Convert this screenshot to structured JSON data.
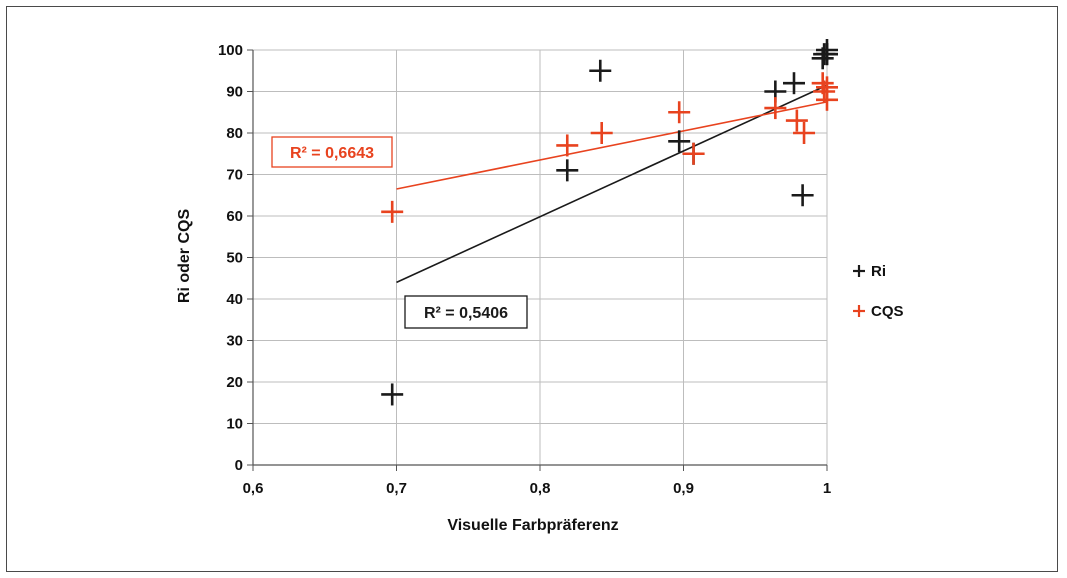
{
  "chart_data": {
    "type": "scatter",
    "title": "",
    "xlabel": "Visuelle Farbpräferenz",
    "ylabel": "Ri oder CQS",
    "xlim": [
      0.6,
      1.0
    ],
    "ylim": [
      0,
      100
    ],
    "x_ticks": [
      "0,6",
      "0,7",
      "0,8",
      "0,9",
      "1"
    ],
    "x_tick_values": [
      0.6,
      0.7,
      0.8,
      0.9,
      1.0
    ],
    "y_ticks": [
      "0",
      "10",
      "20",
      "30",
      "40",
      "50",
      "60",
      "70",
      "80",
      "90",
      "100"
    ],
    "y_tick_values": [
      0,
      10,
      20,
      30,
      40,
      50,
      60,
      70,
      80,
      90,
      100
    ],
    "grid": true,
    "legend_position": "right",
    "series": [
      {
        "name": "Ri",
        "color": "#1a1a1a",
        "marker": "plus",
        "points": [
          [
            0.697,
            17
          ],
          [
            0.819,
            71
          ],
          [
            0.842,
            95
          ],
          [
            0.897,
            78
          ],
          [
            0.907,
            75
          ],
          [
            0.964,
            90
          ],
          [
            0.977,
            92
          ],
          [
            0.983,
            65
          ],
          [
            0.997,
            98
          ],
          [
            0.998,
            99
          ],
          [
            1.0,
            100
          ],
          [
            1.0,
            99
          ],
          [
            1.0,
            99
          ]
        ],
        "trendline": {
          "x": [
            0.7,
            1.0
          ],
          "y": [
            44,
            91.5
          ],
          "r2_label": "R² = 0,5406",
          "label_box_color": "#1a1a1a"
        }
      },
      {
        "name": "CQS",
        "color": "#e8431f",
        "marker": "plus",
        "points": [
          [
            0.697,
            61
          ],
          [
            0.819,
            77
          ],
          [
            0.843,
            80
          ],
          [
            0.897,
            85
          ],
          [
            0.907,
            75
          ],
          [
            0.964,
            86
          ],
          [
            0.979,
            83
          ],
          [
            0.984,
            80
          ],
          [
            0.997,
            92
          ],
          [
            0.998,
            90
          ],
          [
            1.0,
            88
          ],
          [
            1.0,
            91
          ]
        ],
        "trendline": {
          "x": [
            0.7,
            1.0
          ],
          "y": [
            66.5,
            87.5
          ],
          "r2_label": "R² = 0,6643",
          "label_box_color": "#e8431f"
        }
      }
    ]
  },
  "legend": {
    "items": [
      {
        "label": "Ri",
        "color": "#1a1a1a"
      },
      {
        "label": "CQS",
        "color": "#e8431f"
      }
    ]
  }
}
